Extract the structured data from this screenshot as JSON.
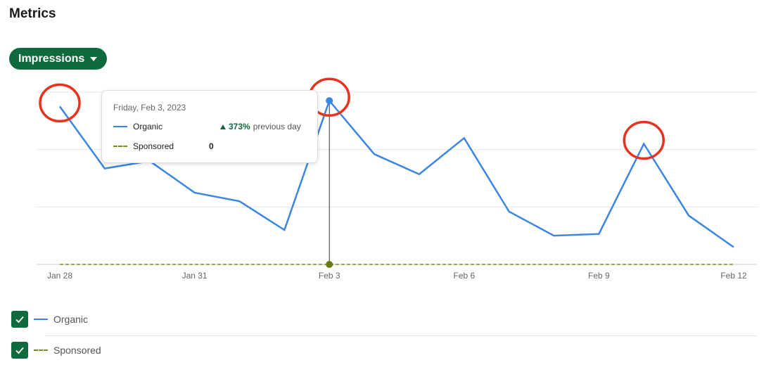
{
  "page": {
    "title": "Metrics"
  },
  "metric_selector": {
    "label": "Impressions",
    "icon": "caret-down-icon"
  },
  "tooltip": {
    "date": "Friday, Feb 3, 2023",
    "rows": [
      {
        "name": "Organic",
        "change_pct": "373%",
        "change_text": "previous day"
      },
      {
        "name": "Sponsored",
        "value": "0"
      }
    ]
  },
  "legend": [
    {
      "label": "Organic",
      "checked": true,
      "style": "solid",
      "color": "#3b86e0"
    },
    {
      "label": "Sponsored",
      "checked": true,
      "style": "dashed",
      "color": "#7a8a1c"
    }
  ],
  "colors": {
    "accent": "#0f6b3d",
    "organic": "#3b86e0",
    "sponsored": "#7a8a1c",
    "annotation": "#e8321e"
  },
  "chart_data": {
    "type": "line",
    "x": [
      "Jan 28",
      "Jan 29",
      "Jan 30",
      "Jan 31",
      "Feb 1",
      "Feb 2",
      "Feb 3",
      "Feb 4",
      "Feb 5",
      "Feb 6",
      "Feb 7",
      "Feb 8",
      "Feb 9",
      "Feb 10",
      "Feb 11",
      "Feb 12"
    ],
    "tick_labels": [
      "Jan 28",
      "Jan 31",
      "Feb 3",
      "Feb 6",
      "Feb 9",
      "Feb 12"
    ],
    "ylim": [
      0,
      3
    ],
    "grid": true,
    "series": [
      {
        "name": "Organic",
        "values": [
          2.75,
          1.67,
          1.8,
          1.25,
          1.1,
          0.6,
          2.85,
          1.92,
          1.57,
          2.2,
          0.92,
          0.5,
          0.53,
          2.1,
          0.85,
          0.3
        ]
      },
      {
        "name": "Sponsored",
        "values": [
          0,
          0,
          0,
          0,
          0,
          0,
          0,
          0,
          0,
          0,
          0,
          0,
          0,
          0,
          0,
          0
        ]
      }
    ],
    "highlight_index": 6,
    "annotated_points": [
      0,
      6,
      13
    ]
  }
}
